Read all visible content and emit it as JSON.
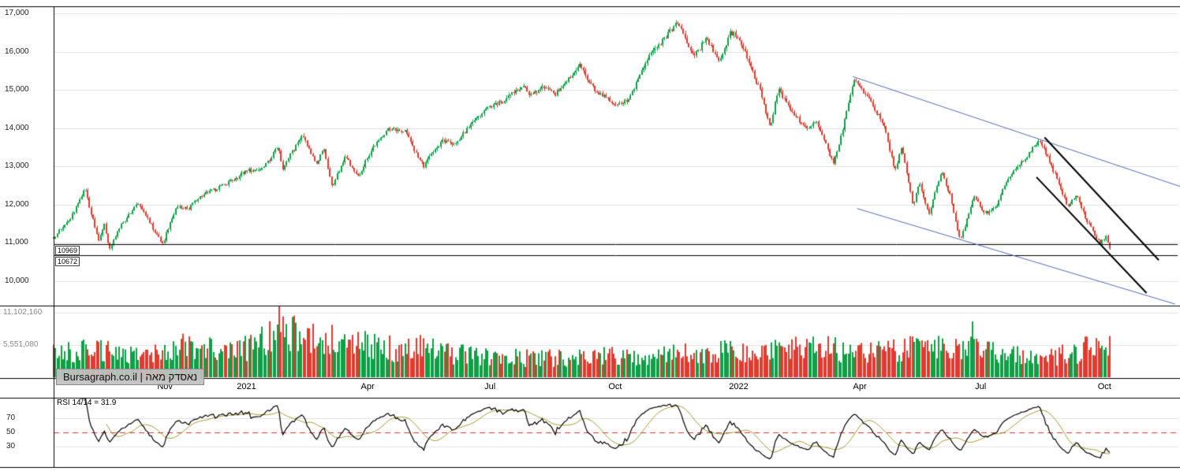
{
  "watermark": {
    "text": "Bursagraph.co.il | נאסדק מאה"
  },
  "rsi_panel": {
    "label": "RSI 14/14 = 31.9",
    "ticks": [
      {
        "value": 70,
        "label": "70"
      },
      {
        "value": 50,
        "label": "50"
      },
      {
        "value": 30,
        "label": "30"
      }
    ],
    "midline": 50
  },
  "price_axis": {
    "min": 9360,
    "max": 17190,
    "ticks": [
      {
        "value": 17000,
        "label": "17,000"
      },
      {
        "value": 16000,
        "label": "16,000"
      },
      {
        "value": 15000,
        "label": "15,000"
      },
      {
        "value": 14000,
        "label": "14,000"
      },
      {
        "value": 13000,
        "label": "13,000"
      },
      {
        "value": 12000,
        "label": "12,000"
      },
      {
        "value": 11000,
        "label": "11,000"
      },
      {
        "value": 10000,
        "label": "10,000"
      }
    ]
  },
  "volume_axis": {
    "ticks": [
      {
        "value": 11102160,
        "label": "11,102,160"
      },
      {
        "value": 5551080,
        "label": "5,551,080"
      }
    ]
  },
  "levels": [
    {
      "value": 10969,
      "label": "10969"
    },
    {
      "value": 10672,
      "label": "10672"
    }
  ],
  "time_axis": {
    "labels": [
      {
        "m": 2.73,
        "label": "Nov"
      },
      {
        "m": 4.73,
        "label": "2021"
      },
      {
        "m": 7.7,
        "label": "Apr"
      },
      {
        "m": 10.7,
        "label": "Jul"
      },
      {
        "m": 13.77,
        "label": "Oct"
      },
      {
        "m": 16.8,
        "label": "2022"
      },
      {
        "m": 19.77,
        "label": "Apr"
      },
      {
        "m": 22.73,
        "label": "Jul"
      },
      {
        "m": 25.77,
        "label": "Oct"
      }
    ]
  },
  "colors": {
    "up": "#0da045",
    "down": "#e23a2e",
    "grid": "#e0e0e0",
    "border": "#000000",
    "trend_blue": "#5468b4",
    "trend_black": "#000000",
    "rsi_line": "#000000",
    "rsi_ma": "#a09a2a",
    "rsi_mid": "#e03030",
    "level_line": "#000000"
  },
  "chart_data": {
    "type": "candlestick",
    "title": "נאסדק מאה (Nasdaq 100)",
    "source_label": "Bursagraph.co.il",
    "x_start": "Aug 2020",
    "x_end": "Oct 2022",
    "months_total": 25.93,
    "trading_days_per_month": 21.7,
    "render_seed": 1234,
    "ylim": [
      9360,
      17190
    ],
    "price_path_anchors_format": "[months_from_Aug_2020, price]",
    "price_anchors": [
      [
        0,
        11150
      ],
      [
        0.4,
        11600
      ],
      [
        0.77,
        12420
      ],
      [
        0.95,
        11650
      ],
      [
        1.1,
        11050
      ],
      [
        1.25,
        11480
      ],
      [
        1.37,
        10820
      ],
      [
        1.6,
        11380
      ],
      [
        1.8,
        11650
      ],
      [
        2.07,
        12050
      ],
      [
        2.35,
        11560
      ],
      [
        2.67,
        10960
      ],
      [
        3.0,
        11920
      ],
      [
        3.3,
        11900
      ],
      [
        3.67,
        12270
      ],
      [
        4.1,
        12470
      ],
      [
        4.45,
        12670
      ],
      [
        4.7,
        12888
      ],
      [
        5.0,
        12900
      ],
      [
        5.25,
        13100
      ],
      [
        5.5,
        13550
      ],
      [
        5.63,
        12925
      ],
      [
        5.8,
        13300
      ],
      [
        6.1,
        13807
      ],
      [
        6.43,
        13070
      ],
      [
        6.63,
        13450
      ],
      [
        6.83,
        12464
      ],
      [
        7.17,
        13300
      ],
      [
        7.35,
        12900
      ],
      [
        7.5,
        12790
      ],
      [
        7.8,
        13450
      ],
      [
        8.2,
        13990
      ],
      [
        8.63,
        13940
      ],
      [
        8.8,
        13530
      ],
      [
        9.07,
        13002
      ],
      [
        9.3,
        13410
      ],
      [
        9.57,
        13690
      ],
      [
        9.8,
        13550
      ],
      [
        10.2,
        14050
      ],
      [
        10.67,
        14555
      ],
      [
        11.0,
        14700
      ],
      [
        11.53,
        15110
      ],
      [
        11.7,
        14850
      ],
      [
        12.0,
        15100
      ],
      [
        12.3,
        14890
      ],
      [
        12.9,
        15675
      ],
      [
        13.2,
        15080
      ],
      [
        13.5,
        14820
      ],
      [
        13.8,
        14570
      ],
      [
        14.1,
        14750
      ],
      [
        14.6,
        15850
      ],
      [
        15.3,
        16765
      ],
      [
        15.55,
        16200
      ],
      [
        15.7,
        15880
      ],
      [
        16.0,
        16330
      ],
      [
        16.33,
        15780
      ],
      [
        16.6,
        16500
      ],
      [
        16.8,
        16400
      ],
      [
        17.1,
        15600
      ],
      [
        17.35,
        14900
      ],
      [
        17.57,
        14003
      ],
      [
        17.77,
        15020
      ],
      [
        18.0,
        14600
      ],
      [
        18.25,
        14250
      ],
      [
        18.47,
        13970
      ],
      [
        18.7,
        14230
      ],
      [
        19.13,
        13046
      ],
      [
        19.4,
        14200
      ],
      [
        19.63,
        15239
      ],
      [
        19.9,
        14900
      ],
      [
        20.37,
        14100
      ],
      [
        20.63,
        12855
      ],
      [
        20.8,
        13535
      ],
      [
        21.07,
        11972
      ],
      [
        21.23,
        12550
      ],
      [
        21.47,
        11740
      ],
      [
        21.77,
        12900
      ],
      [
        22.0,
        12200
      ],
      [
        22.23,
        11037
      ],
      [
        22.57,
        12230
      ],
      [
        22.83,
        11780
      ],
      [
        23.1,
        11920
      ],
      [
        23.3,
        12440
      ],
      [
        23.6,
        12950
      ],
      [
        23.9,
        13300
      ],
      [
        24.17,
        13720
      ],
      [
        24.45,
        13060
      ],
      [
        24.65,
        12580
      ],
      [
        24.87,
        11930
      ],
      [
        25.07,
        12270
      ],
      [
        25.35,
        11550
      ],
      [
        25.67,
        10971
      ],
      [
        25.8,
        11176
      ],
      [
        25.93,
        10700
      ]
    ],
    "volume_anchors_millions": [
      [
        0,
        3.8
      ],
      [
        1,
        4.6
      ],
      [
        2,
        3.8
      ],
      [
        2.8,
        4.4
      ],
      [
        3.2,
        6.0
      ],
      [
        3.7,
        4.8
      ],
      [
        4.4,
        4.2
      ],
      [
        5.0,
        5.4
      ],
      [
        5.6,
        7.6
      ],
      [
        6.0,
        7.0
      ],
      [
        6.5,
        6.2
      ],
      [
        7.2,
        6.4
      ],
      [
        8.0,
        5.2
      ],
      [
        8.6,
        4.4
      ],
      [
        9.1,
        5.0
      ],
      [
        9.8,
        4.0
      ],
      [
        10.5,
        3.7
      ],
      [
        11.5,
        3.2
      ],
      [
        12.5,
        3.3
      ],
      [
        13.5,
        3.6
      ],
      [
        14.5,
        3.3
      ],
      [
        15.3,
        4.0
      ],
      [
        16.0,
        3.9
      ],
      [
        16.5,
        4.3
      ],
      [
        17.3,
        4.4
      ],
      [
        18.0,
        4.8
      ],
      [
        18.6,
        5.0
      ],
      [
        19.3,
        4.6
      ],
      [
        20.0,
        4.1
      ],
      [
        20.8,
        4.5
      ],
      [
        21.3,
        5.0
      ],
      [
        22.0,
        4.6
      ],
      [
        22.6,
        5.2
      ],
      [
        23.2,
        3.9
      ],
      [
        24.0,
        3.3
      ],
      [
        24.6,
        3.6
      ],
      [
        25.3,
        4.3
      ],
      [
        25.93,
        4.8
      ]
    ],
    "volume_spikes": [
      {
        "m": 5.53,
        "v": 12.3
      },
      {
        "m": 5.9,
        "v": 10.6
      },
      {
        "m": 6.35,
        "v": 9.2
      },
      {
        "m": 22.55,
        "v": 9.6
      },
      {
        "m": 25.32,
        "v": 7.0
      }
    ],
    "volume_scale_reference": {
      "value": 11102160,
      "pixels": 82
    },
    "trendlines": [
      {
        "color": "blue",
        "width": 1,
        "points": [
          [
            19.6,
            15350
          ],
          [
            27.7,
            12450
          ]
        ]
      },
      {
        "color": "blue",
        "width": 1,
        "points": [
          [
            19.7,
            11900
          ],
          [
            27.5,
            9400
          ]
        ]
      },
      {
        "color": "black",
        "width": 2,
        "points": [
          [
            24.3,
            13760
          ],
          [
            27.1,
            10550
          ]
        ]
      },
      {
        "color": "black",
        "width": 2,
        "points": [
          [
            24.1,
            12720
          ],
          [
            26.8,
            9690
          ]
        ]
      }
    ],
    "support_levels": [
      10969,
      10672
    ],
    "rsi": {
      "period": 14,
      "ma_period": 14,
      "last_value": 31.9,
      "levels": [
        70,
        50,
        30
      ]
    }
  }
}
